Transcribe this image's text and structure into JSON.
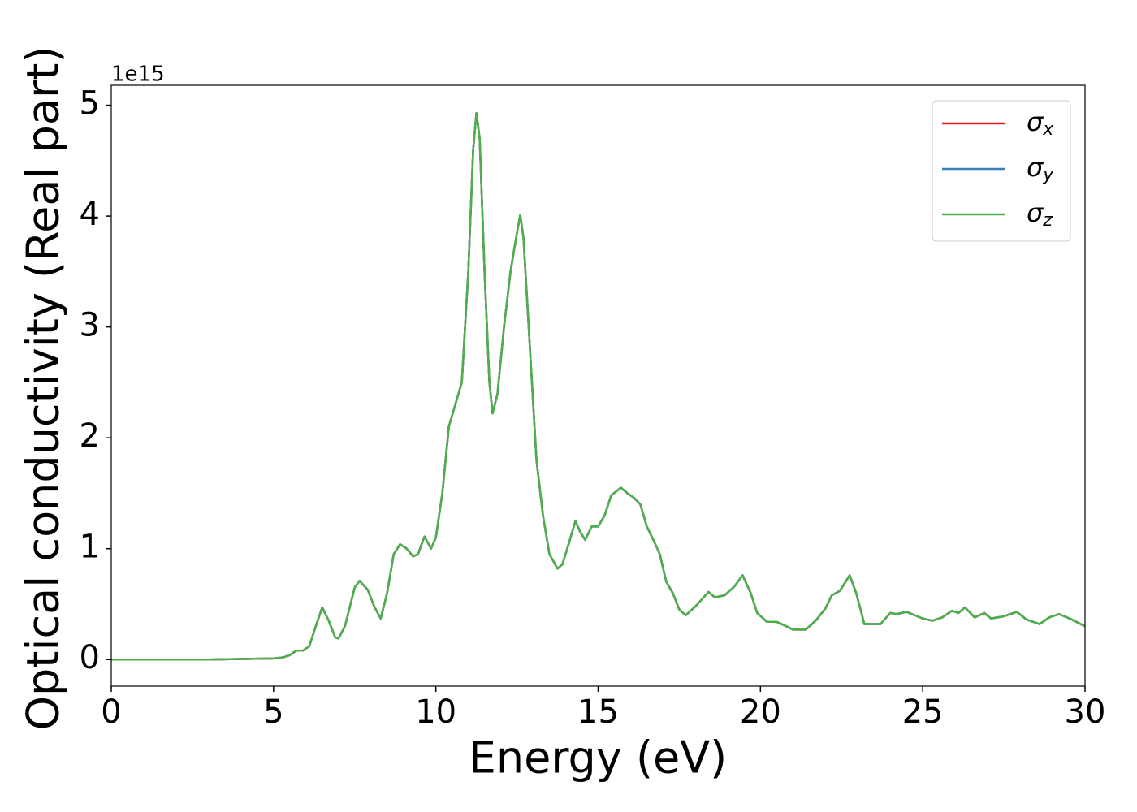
{
  "chart_data": {
    "type": "line",
    "xlabel": "Energy (eV)",
    "ylabel": "Optical conductivity (Real part)",
    "y_offset_label": "1e15",
    "xlim": [
      0,
      30
    ],
    "xticks": [
      0,
      5,
      10,
      15,
      20,
      25,
      30
    ],
    "ylim": [
      -0.24,
      5.18
    ],
    "yticks": [
      0,
      1,
      2,
      3,
      4,
      5
    ],
    "legend": "upper right",
    "x": [
      0,
      1,
      2,
      3,
      4,
      5,
      5.3,
      5.5,
      5.7,
      5.9,
      6.1,
      6.3,
      6.5,
      6.7,
      6.9,
      7.0,
      7.2,
      7.5,
      7.65,
      7.9,
      8.1,
      8.3,
      8.5,
      8.7,
      8.9,
      9.1,
      9.3,
      9.45,
      9.65,
      9.85,
      10.0,
      10.2,
      10.4,
      10.6,
      10.8,
      11.0,
      11.15,
      11.25,
      11.35,
      11.5,
      11.65,
      11.75,
      11.9,
      12.1,
      12.3,
      12.5,
      12.6,
      12.7,
      12.9,
      13.1,
      13.3,
      13.5,
      13.75,
      13.9,
      14.1,
      14.3,
      14.45,
      14.6,
      14.8,
      15.0,
      15.2,
      15.4,
      15.7,
      15.9,
      16.1,
      16.3,
      16.5,
      16.7,
      16.9,
      17.1,
      17.3,
      17.5,
      17.7,
      18.0,
      18.4,
      18.6,
      18.9,
      19.2,
      19.45,
      19.7,
      19.9,
      20.2,
      20.5,
      20.8,
      21.0,
      21.4,
      21.7,
      22.0,
      22.2,
      22.45,
      22.75,
      22.95,
      23.2,
      23.7,
      24.0,
      24.2,
      24.5,
      25.0,
      25.3,
      25.6,
      25.9,
      26.1,
      26.3,
      26.6,
      26.9,
      27.1,
      27.5,
      27.9,
      28.2,
      28.6,
      28.9,
      29.2,
      29.6,
      30
    ],
    "series": [
      {
        "name": "σx",
        "color": "#e41a1c",
        "values": [
          0,
          0,
          0,
          0,
          0.005,
          0.01,
          0.02,
          0.04,
          0.08,
          0.08,
          0.12,
          0.3,
          0.47,
          0.35,
          0.2,
          0.19,
          0.3,
          0.65,
          0.71,
          0.63,
          0.48,
          0.37,
          0.6,
          0.95,
          1.04,
          1.0,
          0.93,
          0.95,
          1.11,
          1.0,
          1.1,
          1.5,
          2.1,
          2.3,
          2.5,
          3.5,
          4.6,
          4.93,
          4.7,
          3.5,
          2.5,
          2.22,
          2.4,
          3.0,
          3.5,
          3.85,
          4.01,
          3.8,
          2.8,
          1.8,
          1.3,
          0.95,
          0.82,
          0.86,
          1.05,
          1.25,
          1.15,
          1.08,
          1.2,
          1.2,
          1.3,
          1.48,
          1.55,
          1.5,
          1.46,
          1.4,
          1.2,
          1.08,
          0.95,
          0.7,
          0.6,
          0.45,
          0.4,
          0.48,
          0.61,
          0.56,
          0.58,
          0.66,
          0.76,
          0.6,
          0.42,
          0.34,
          0.34,
          0.3,
          0.27,
          0.27,
          0.35,
          0.46,
          0.58,
          0.62,
          0.76,
          0.6,
          0.32,
          0.32,
          0.42,
          0.41,
          0.43,
          0.37,
          0.35,
          0.38,
          0.44,
          0.42,
          0.47,
          0.38,
          0.42,
          0.37,
          0.39,
          0.43,
          0.36,
          0.32,
          0.38,
          0.41,
          0.36,
          0.3
        ]
      },
      {
        "name": "σy",
        "color": "#377eb8",
        "values": [
          0,
          0,
          0,
          0,
          0.005,
          0.01,
          0.02,
          0.04,
          0.08,
          0.08,
          0.12,
          0.3,
          0.47,
          0.35,
          0.2,
          0.19,
          0.3,
          0.65,
          0.71,
          0.63,
          0.48,
          0.37,
          0.6,
          0.95,
          1.04,
          1.0,
          0.93,
          0.95,
          1.11,
          1.0,
          1.1,
          1.5,
          2.1,
          2.3,
          2.5,
          3.5,
          4.6,
          4.93,
          4.7,
          3.5,
          2.5,
          2.22,
          2.4,
          3.0,
          3.5,
          3.85,
          4.01,
          3.8,
          2.8,
          1.8,
          1.3,
          0.95,
          0.82,
          0.86,
          1.05,
          1.25,
          1.15,
          1.08,
          1.2,
          1.2,
          1.3,
          1.48,
          1.55,
          1.5,
          1.46,
          1.4,
          1.2,
          1.08,
          0.95,
          0.7,
          0.6,
          0.45,
          0.4,
          0.48,
          0.61,
          0.56,
          0.58,
          0.66,
          0.76,
          0.6,
          0.42,
          0.34,
          0.34,
          0.3,
          0.27,
          0.27,
          0.35,
          0.46,
          0.58,
          0.62,
          0.76,
          0.6,
          0.32,
          0.32,
          0.42,
          0.41,
          0.43,
          0.37,
          0.35,
          0.38,
          0.44,
          0.42,
          0.47,
          0.38,
          0.42,
          0.37,
          0.39,
          0.43,
          0.36,
          0.32,
          0.38,
          0.41,
          0.36,
          0.3
        ]
      },
      {
        "name": "σz",
        "color": "#4daf4a",
        "values": [
          0,
          0,
          0,
          0,
          0.005,
          0.01,
          0.02,
          0.04,
          0.08,
          0.08,
          0.12,
          0.3,
          0.47,
          0.35,
          0.2,
          0.19,
          0.3,
          0.65,
          0.71,
          0.63,
          0.48,
          0.37,
          0.6,
          0.95,
          1.04,
          1.0,
          0.93,
          0.95,
          1.11,
          1.0,
          1.1,
          1.5,
          2.1,
          2.3,
          2.5,
          3.5,
          4.6,
          4.93,
          4.7,
          3.5,
          2.5,
          2.22,
          2.4,
          3.0,
          3.5,
          3.85,
          4.01,
          3.8,
          2.8,
          1.8,
          1.3,
          0.95,
          0.82,
          0.86,
          1.05,
          1.25,
          1.15,
          1.08,
          1.2,
          1.2,
          1.3,
          1.48,
          1.55,
          1.5,
          1.46,
          1.4,
          1.2,
          1.08,
          0.95,
          0.7,
          0.6,
          0.45,
          0.4,
          0.48,
          0.61,
          0.56,
          0.58,
          0.66,
          0.76,
          0.6,
          0.42,
          0.34,
          0.34,
          0.3,
          0.27,
          0.27,
          0.35,
          0.46,
          0.58,
          0.62,
          0.76,
          0.6,
          0.32,
          0.32,
          0.42,
          0.41,
          0.43,
          0.37,
          0.35,
          0.38,
          0.44,
          0.42,
          0.47,
          0.38,
          0.42,
          0.37,
          0.39,
          0.43,
          0.36,
          0.32,
          0.38,
          0.41,
          0.36,
          0.3
        ]
      }
    ]
  }
}
